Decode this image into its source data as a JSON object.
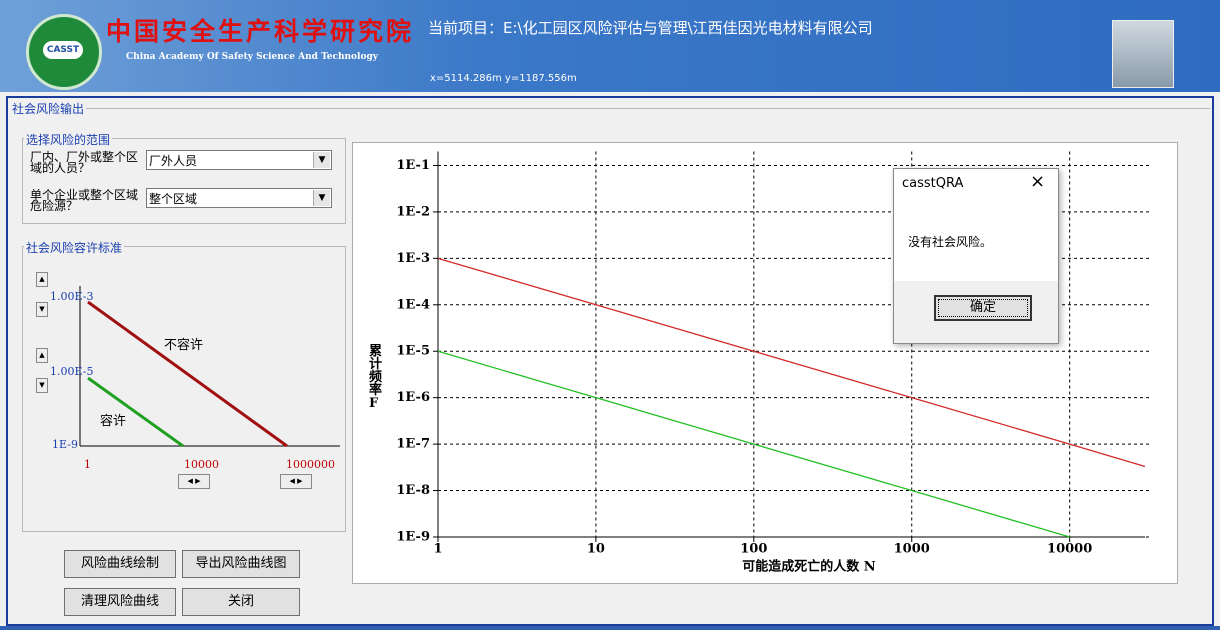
{
  "header": {
    "logo": "CASST",
    "title_cn": "中国安全生产科学研究院",
    "title_en": "China Academy Of Safety Science And Technology",
    "project": "当前项目：E:\\化工园区风险评估与管理\\江西佳因光电材料有限公司",
    "coords": "x=5114.286m  y=1187.556m"
  },
  "panel": {
    "title": "社会风险输出",
    "range_group": {
      "title": "选择风险的范围",
      "rows": [
        {
          "label": "厂内、厂外或整个区域的人员？",
          "value": "厂外人员"
        },
        {
          "label": "单个企业或整个区域危险源？",
          "value": "整个区域"
        }
      ]
    },
    "tolerance_group": {
      "title": "社会风险容许标准",
      "upper": "1.00E-3",
      "lower": "1.00E-5",
      "y_min": "1E-9",
      "x_min": "1",
      "x_mid": "10000",
      "x_max": "1000000",
      "unacceptable": "不容许",
      "acceptable": "容许"
    },
    "buttons": [
      "风险曲线绘制",
      "导出风险曲线图",
      "清理风险曲线",
      "关闭"
    ]
  },
  "chart_data": {
    "type": "line",
    "xlabel": "可能造成死亡的人数 N",
    "ylabel": "累计频率F",
    "xscale": "log",
    "yscale": "log",
    "xlim": [
      1,
      30000
    ],
    "ylim": [
      1e-09,
      0.2
    ],
    "xticks": [
      1,
      10,
      100,
      1000,
      10000
    ],
    "yticks": [
      {
        "value": 1e-09,
        "label": "1E-9"
      },
      {
        "value": 1e-08,
        "label": "1E-8"
      },
      {
        "value": 1e-07,
        "label": "1E-7"
      },
      {
        "value": 1e-06,
        "label": "1E-6"
      },
      {
        "value": 1e-05,
        "label": "1E-5"
      },
      {
        "value": 0.0001,
        "label": "1E-4"
      },
      {
        "value": 0.001,
        "label": "1E-3"
      },
      {
        "value": 0.01,
        "label": "1E-2"
      },
      {
        "value": 0.1,
        "label": "1E-1"
      }
    ],
    "grid": true,
    "series": [
      {
        "color": "#d42a2a",
        "x": [
          1,
          10,
          100,
          1000,
          10000,
          30000
        ],
        "values": [
          0.001,
          0.0001,
          1e-05,
          1e-06,
          1e-07,
          3.3e-08
        ]
      },
      {
        "color": "#22c022",
        "x": [
          1,
          10,
          100,
          1000,
          10000
        ],
        "values": [
          1e-05,
          1e-06,
          1e-07,
          1e-08,
          1e-09
        ]
      }
    ]
  },
  "dialog": {
    "title": "casstQRA",
    "close": "×",
    "message": "没有社会风险。",
    "button": "确定"
  }
}
